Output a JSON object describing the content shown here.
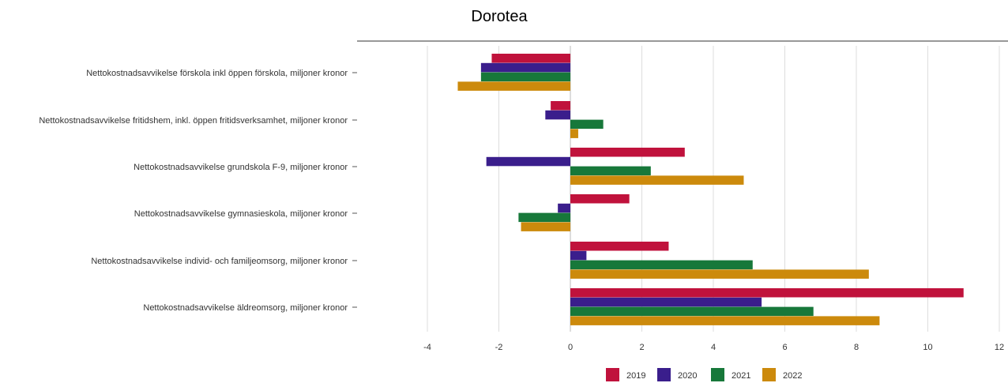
{
  "chart_data": {
    "type": "bar",
    "orientation": "horizontal",
    "title": "Dorotea",
    "xlabel": "",
    "ylabel": "",
    "xlim": [
      -4,
      12
    ],
    "xticks": [
      "-4",
      "-2",
      "0",
      "2",
      "4",
      "6",
      "8",
      "10",
      "12"
    ],
    "grid": "vertical",
    "legend_position": "bottom",
    "categories": [
      "Nettokostnadsavvikelse förskola inkl öppen förskola, miljoner kronor",
      "Nettokostnadsavvikelse fritidshem, inkl. öppen fritidsverksamhet, miljoner kronor",
      "Nettokostnadsavvikelse grundskola F-9, miljoner kronor",
      "Nettokostnadsavvikelse gymnasieskola, miljoner kronor",
      "Nettokostnadsavvikelse individ- och familjeomsorg, miljoner kronor",
      "Nettokostnadsavvikelse äldreomsorg, miljoner kronor"
    ],
    "series": [
      {
        "name": "2019",
        "color": "#c0123c",
        "values": [
          -2.2,
          -0.55,
          3.2,
          1.65,
          2.75,
          11.0
        ]
      },
      {
        "name": "2020",
        "color": "#3a1e8c",
        "values": [
          -2.5,
          -0.7,
          -2.35,
          -0.35,
          0.45,
          5.35
        ]
      },
      {
        "name": "2021",
        "color": "#17783a",
        "values": [
          -2.5,
          0.92,
          2.25,
          -1.45,
          5.1,
          6.8
        ]
      },
      {
        "name": "2022",
        "color": "#cc8a0c",
        "values": [
          -3.15,
          0.22,
          4.85,
          -1.38,
          8.35,
          8.65
        ]
      }
    ]
  }
}
